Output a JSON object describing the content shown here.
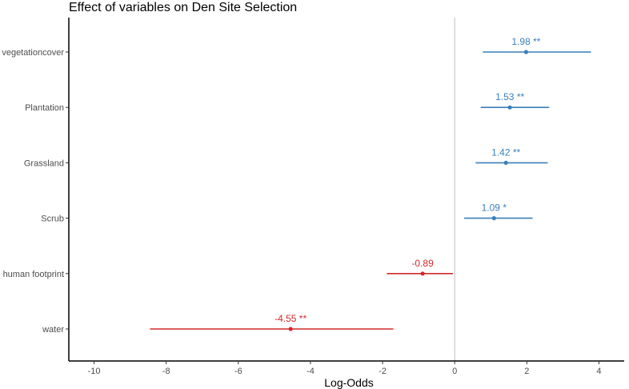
{
  "chart_data": {
    "type": "forest",
    "title": "Effect of variables on Den Site Selection",
    "xlabel": "Log-Odds",
    "ylabel": "",
    "xlim": [
      -10.7,
      4.7
    ],
    "xticks": [
      -10,
      -8,
      -6,
      -4,
      -2,
      0,
      2,
      4
    ],
    "reference_line": 0,
    "grid": false,
    "colors": {
      "positive": "#3a7fba",
      "negative": "#d42a2a",
      "reference": "#c8c8c8",
      "axis": "#000000"
    },
    "rows": [
      {
        "name": "vegetationcover",
        "estimate": 1.98,
        "lower": 0.78,
        "upper": 3.78,
        "label": "1.98 **"
      },
      {
        "name": "Plantation",
        "estimate": 1.53,
        "lower": 0.72,
        "upper": 2.62,
        "label": "1.53 **"
      },
      {
        "name": "Grassland",
        "estimate": 1.42,
        "lower": 0.58,
        "upper": 2.58,
        "label": "1.42 **"
      },
      {
        "name": "Scrub",
        "estimate": 1.09,
        "lower": 0.26,
        "upper": 2.16,
        "label": "1.09 *"
      },
      {
        "name": "human footprint",
        "estimate": -0.89,
        "lower": -1.88,
        "upper": -0.05,
        "label": "-0.89"
      },
      {
        "name": "water",
        "estimate": -4.55,
        "lower": -8.45,
        "upper": -1.7,
        "label": "-4.55 **"
      }
    ]
  }
}
